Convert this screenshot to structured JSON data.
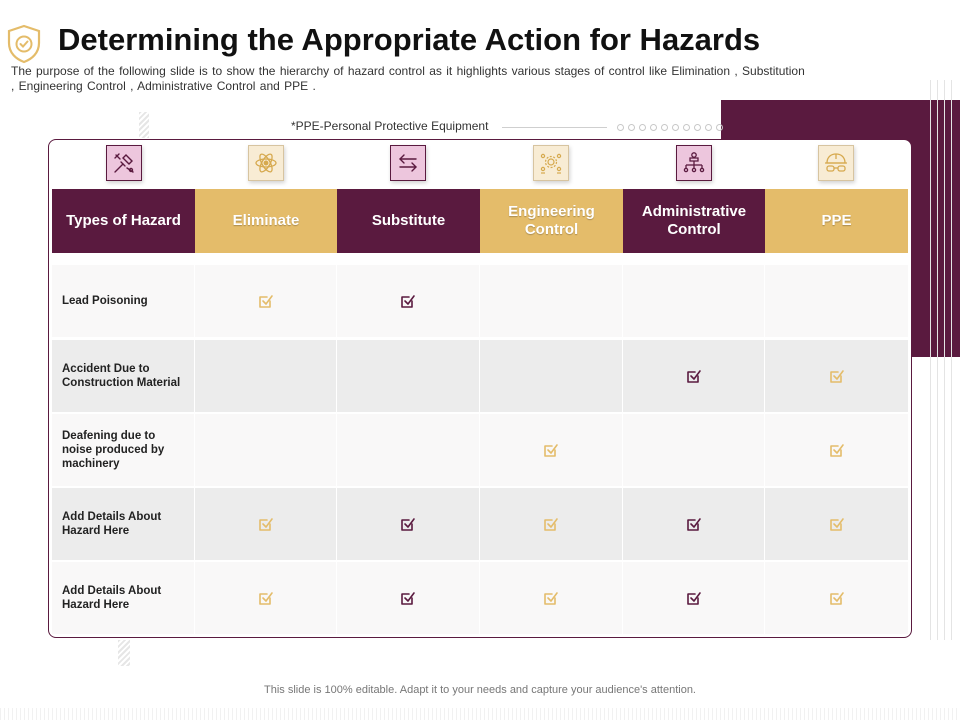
{
  "header": {
    "title": "Determining the Appropriate Action for Hazards",
    "subtitle": "The purpose of the following slide is to show the hierarchy of hazard control as it highlights various stages of control like Elimination , Substitution , Engineering Control , Administrative Control and PPE ."
  },
  "ppe_note": "*PPE-Personal Protective Equipment",
  "colors": {
    "primary": "#5a1a3f",
    "gold": "#e4bc6a",
    "pink_bg": "#edc6dd",
    "cream_bg": "#f8ecd4"
  },
  "column_icons": [
    "tools-icon",
    "atom-icon",
    "swap-arrows-icon",
    "gears-people-icon",
    "hierarchy-icon",
    "hard-hat-goggles-icon"
  ],
  "columns": [
    {
      "label": "Types of Hazard",
      "style": "dark"
    },
    {
      "label": "Eliminate",
      "style": "gold"
    },
    {
      "label": "Substitute",
      "style": "dark"
    },
    {
      "label": "Engineering Control",
      "style": "gold"
    },
    {
      "label": "Administrative Control",
      "style": "dark"
    },
    {
      "label": "PPE",
      "style": "gold"
    }
  ],
  "rows": [
    {
      "hazard": "Lead Poisoning",
      "checks": [
        true,
        true,
        false,
        false,
        false
      ]
    },
    {
      "hazard": "Accident Due to Construction Material",
      "checks": [
        false,
        false,
        false,
        true,
        true
      ]
    },
    {
      "hazard": "Deafening due to noise produced by machinery",
      "checks": [
        false,
        false,
        true,
        false,
        true
      ]
    },
    {
      "hazard": "Add Details About Hazard Here",
      "checks": [
        true,
        true,
        true,
        true,
        true
      ]
    },
    {
      "hazard": "Add Details About Hazard Here",
      "checks": [
        true,
        true,
        true,
        true,
        true
      ]
    }
  ],
  "footer": "This slide is 100% editable. Adapt it to your needs and capture your audience's attention."
}
